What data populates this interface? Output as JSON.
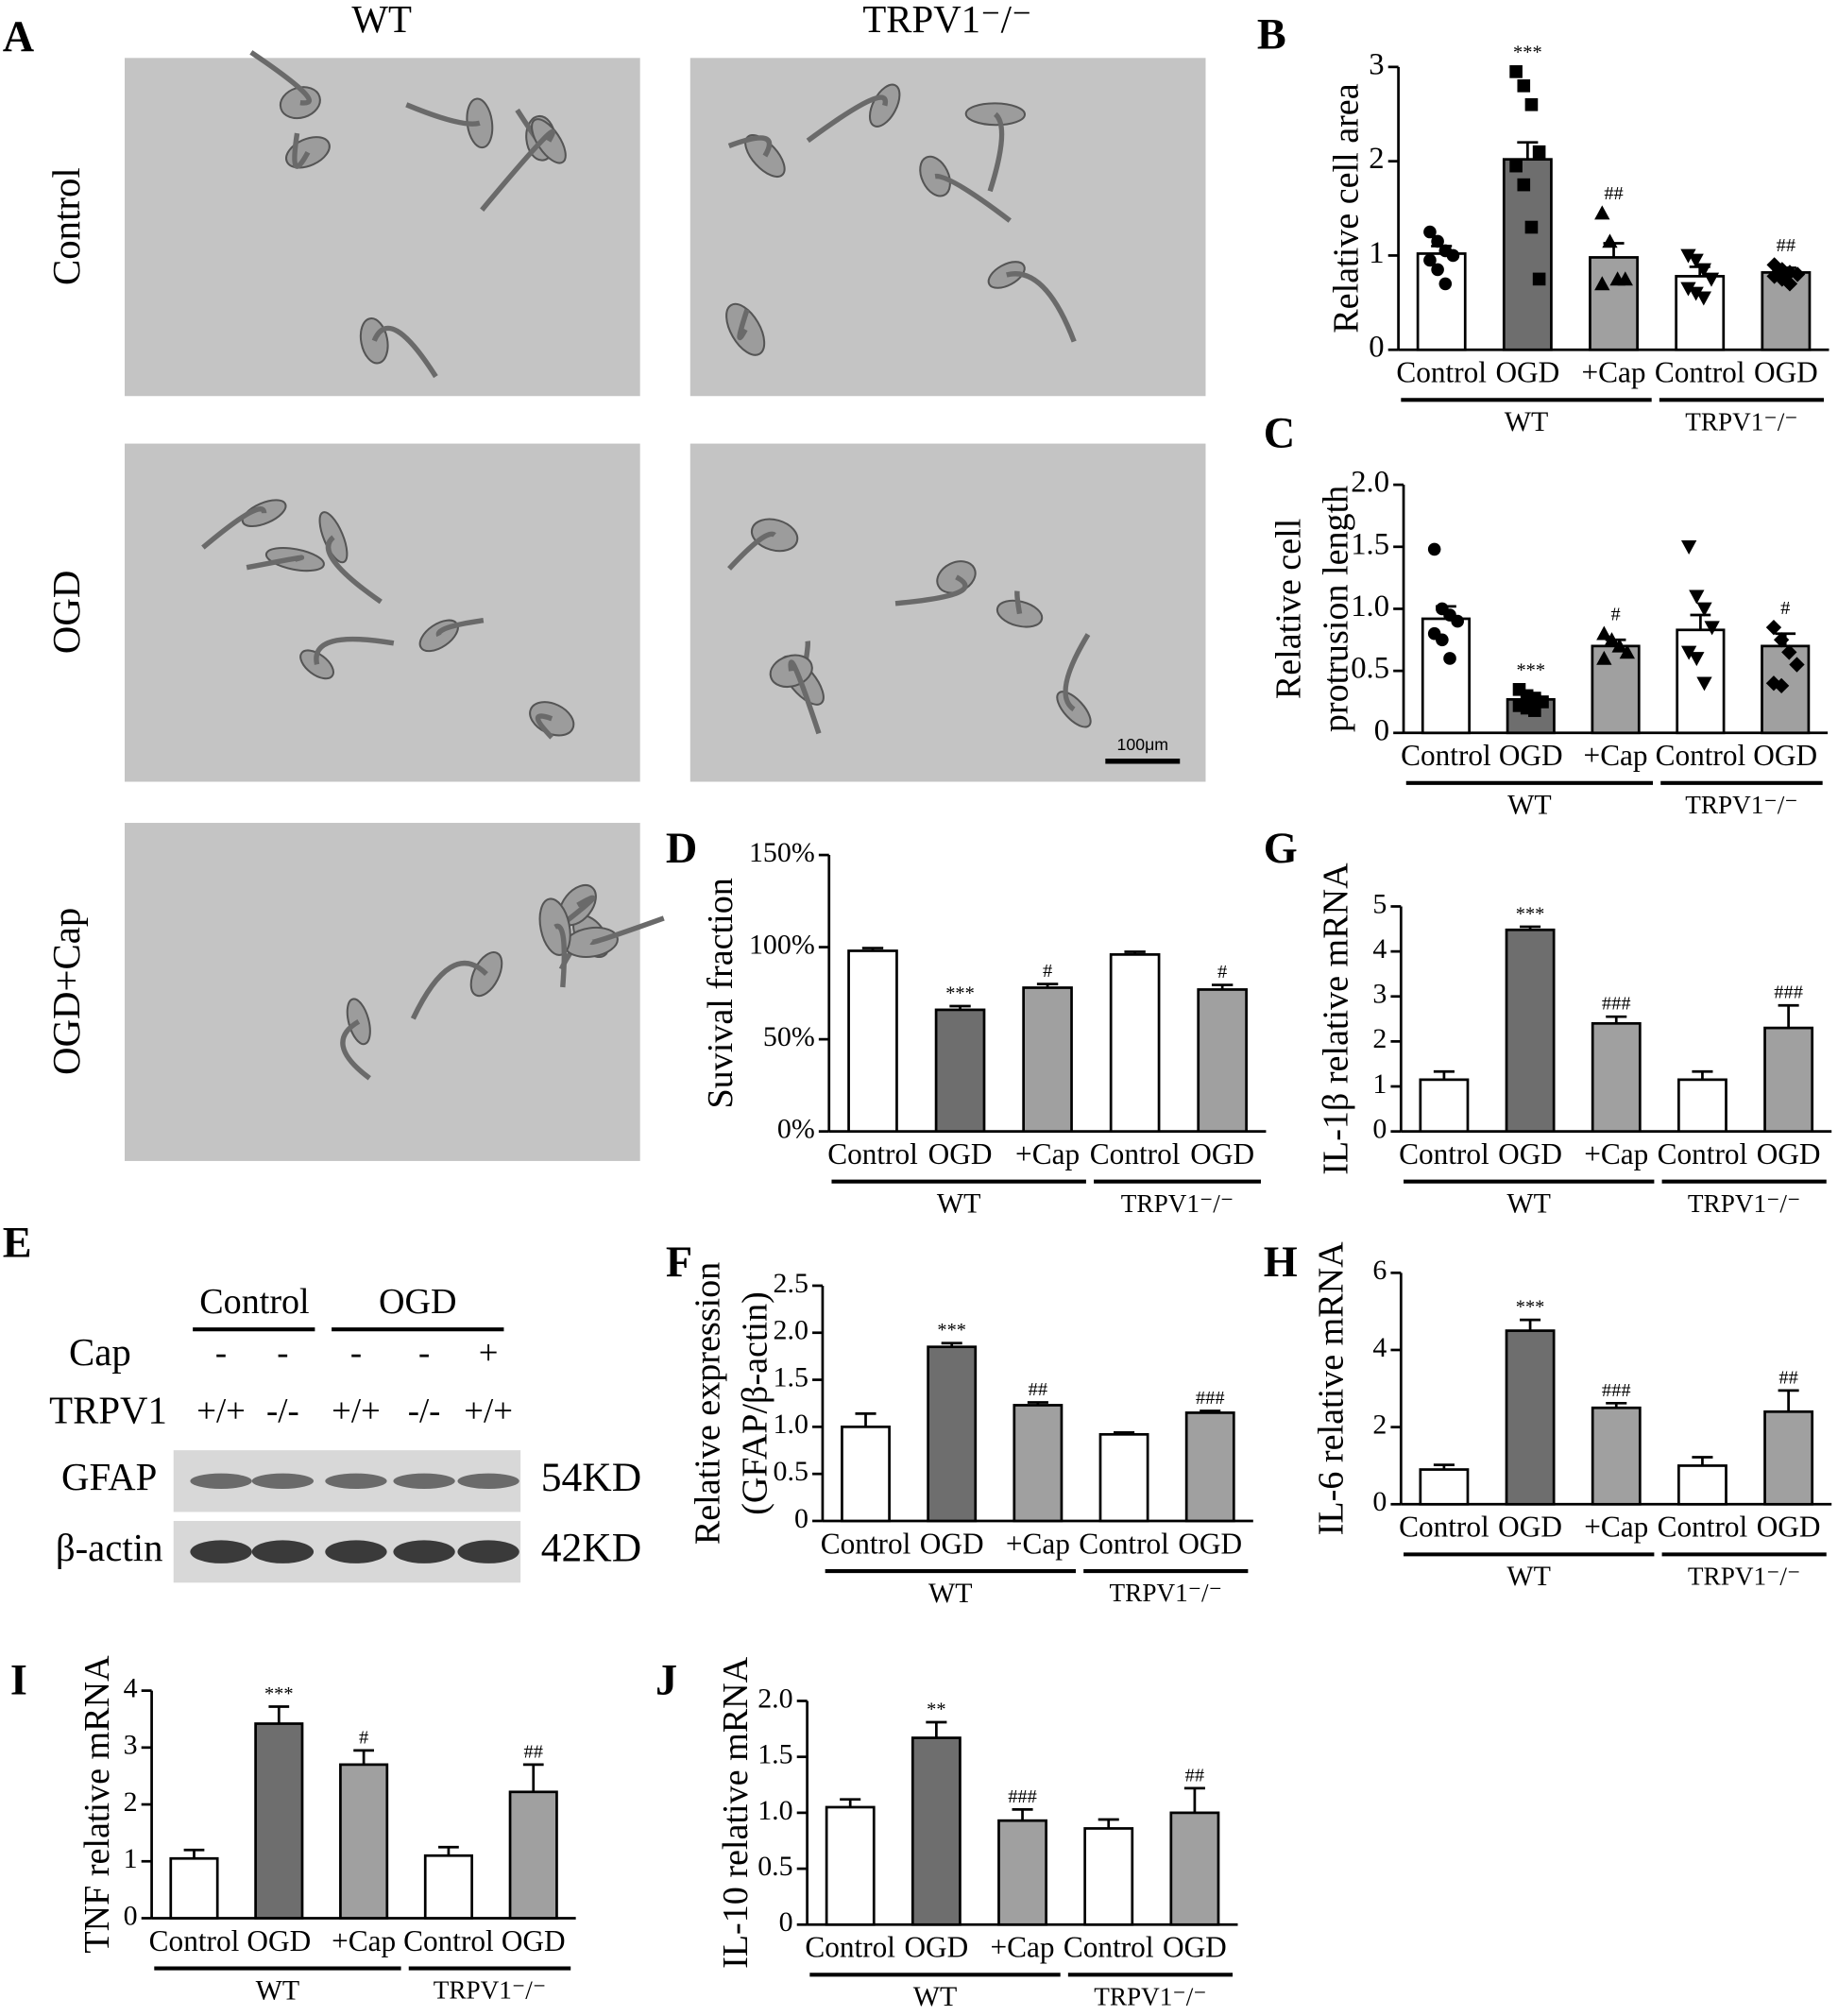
{
  "panel_a": {
    "letter": "A",
    "columns": [
      "WT",
      "TRPV1⁻/⁻"
    ],
    "rows": [
      "Control",
      "OGD",
      "OGD+Cap"
    ],
    "scale_bar": "100μm"
  },
  "panel_e": {
    "letter": "E",
    "groups": [
      "Control",
      "OGD"
    ],
    "rows": [
      {
        "label": "Cap",
        "cells": [
          "-",
          "-",
          "-",
          "-",
          "+"
        ]
      },
      {
        "label": "TRPV1",
        "cells": [
          "+/+",
          "-/-",
          "+/+",
          "-/-",
          "+/+"
        ]
      }
    ],
    "bands": [
      {
        "label": "GFAP",
        "size": "54KD"
      },
      {
        "label": "β-actin",
        "size": "42KD"
      }
    ]
  },
  "chart_data": [
    {
      "type": "bar",
      "letter": "B",
      "ylabel": "Relative cell area",
      "categories": [
        "Control",
        "OGD",
        "+Cap",
        "Control",
        "OGD"
      ],
      "groups": [
        "WT",
        "TRPV1⁻/⁻"
      ],
      "values": [
        1.02,
        2.02,
        0.98,
        0.78,
        0.82
      ],
      "errors": [
        0.08,
        0.18,
        0.15,
        0.1,
        0.05
      ],
      "annotations": [
        null,
        "***",
        "##",
        null,
        "##"
      ],
      "colors": [
        "#ffffff",
        "#6e6e6e",
        "#a0a0a0",
        "#ffffff",
        "#a0a0a0"
      ],
      "markers": [
        "circle",
        "square",
        "triangle",
        "triangle-down",
        "diamond"
      ],
      "points": [
        [
          1.25,
          1.15,
          1.05,
          1.0,
          0.95,
          0.85,
          0.7
        ],
        [
          2.95,
          2.8,
          2.6,
          2.1,
          1.95,
          1.75,
          1.3,
          0.75
        ],
        [
          1.45,
          1.15,
          0.75,
          0.75,
          0.7
        ],
        [
          1.0,
          0.95,
          0.85,
          0.75,
          0.65,
          0.6,
          0.55
        ],
        [
          0.9,
          0.85,
          0.82,
          0.8,
          0.78,
          0.75,
          0.7
        ]
      ],
      "ylim": [
        0,
        3
      ],
      "yticks": [
        0,
        1,
        2,
        3
      ]
    },
    {
      "type": "bar",
      "letter": "C",
      "ylabel": [
        "Relative cell",
        "protrusion length"
      ],
      "categories": [
        "Control",
        "OGD",
        "+Cap",
        "Control",
        "OGD"
      ],
      "groups": [
        "WT",
        "TRPV1⁻/⁻"
      ],
      "values": [
        0.92,
        0.27,
        0.7,
        0.83,
        0.7
      ],
      "errors": [
        0.1,
        0.03,
        0.05,
        0.12,
        0.1
      ],
      "annotations": [
        null,
        "***",
        "#",
        null,
        "#"
      ],
      "colors": [
        "#ffffff",
        "#6e6e6e",
        "#a0a0a0",
        "#ffffff",
        "#a0a0a0"
      ],
      "markers": [
        "circle",
        "square",
        "triangle",
        "triangle-down",
        "diamond"
      ],
      "points": [
        [
          1.48,
          1.0,
          0.95,
          0.9,
          0.8,
          0.75,
          0.6
        ],
        [
          0.35,
          0.3,
          0.28,
          0.25,
          0.22,
          0.2,
          0.18
        ],
        [
          0.8,
          0.75,
          0.7,
          0.65,
          0.6
        ],
        [
          1.5,
          1.1,
          1.0,
          0.85,
          0.65,
          0.6,
          0.4
        ],
        [
          0.85,
          0.75,
          0.65,
          0.55,
          0.4,
          0.38
        ]
      ],
      "ylim": [
        0,
        2
      ],
      "yticks": [
        0,
        0.5,
        {
          "value": 1,
          "label": "1.0"
        },
        1.5,
        {
          "value": 2,
          "label": "2.0"
        }
      ]
    },
    {
      "type": "bar",
      "letter": "D",
      "ylabel": "Suvival fraction",
      "categories": [
        "Control",
        "OGD",
        "+Cap",
        "Control",
        "OGD"
      ],
      "groups": [
        "WT",
        "TRPV1⁻/⁻"
      ],
      "values": [
        98,
        66,
        78,
        96,
        77
      ],
      "errors": [
        1.5,
        2,
        2,
        1.5,
        2.5
      ],
      "annotations": [
        null,
        "***",
        "#",
        null,
        "#"
      ],
      "colors": [
        "#ffffff",
        "#6e6e6e",
        "#a0a0a0",
        "#ffffff",
        "#a0a0a0"
      ],
      "ylim": [
        0,
        150
      ],
      "yticks": [
        {
          "value": 0,
          "label": "0%"
        },
        {
          "value": 50,
          "label": "50%"
        },
        {
          "value": 100,
          "label": "100%"
        },
        {
          "value": 150,
          "label": "150%"
        }
      ]
    },
    {
      "type": "bar",
      "letter": "F",
      "ylabel": [
        "Relative expression",
        "(GFAP/β-actin)"
      ],
      "categories": [
        "Control",
        "OGD",
        "+Cap",
        "Control",
        "OGD"
      ],
      "groups": [
        "WT",
        "TRPV1⁻/⁻"
      ],
      "values": [
        1.0,
        1.85,
        1.23,
        0.92,
        1.15
      ],
      "errors": [
        0.14,
        0.04,
        0.03,
        0.02,
        0.02
      ],
      "annotations": [
        null,
        "***",
        "##",
        null,
        "###"
      ],
      "colors": [
        "#ffffff",
        "#6e6e6e",
        "#a0a0a0",
        "#ffffff",
        "#a0a0a0"
      ],
      "ylim": [
        0,
        2.5
      ],
      "yticks": [
        0,
        0.5,
        {
          "value": 1,
          "label": "1.0"
        },
        1.5,
        {
          "value": 2,
          "label": "2.0"
        },
        2.5
      ]
    },
    {
      "type": "bar",
      "letter": "G",
      "ylabel": "IL-1β relative mRNA",
      "categories": [
        "Control",
        "OGD",
        "+Cap",
        "Control",
        "OGD"
      ],
      "groups": [
        "WT",
        "TRPV1⁻/⁻"
      ],
      "values": [
        1.15,
        4.48,
        2.4,
        1.15,
        2.3
      ],
      "errors": [
        0.18,
        0.07,
        0.15,
        0.18,
        0.5
      ],
      "annotations": [
        null,
        "***",
        "###",
        null,
        "###"
      ],
      "colors": [
        "#ffffff",
        "#6e6e6e",
        "#a0a0a0",
        "#ffffff",
        "#a0a0a0"
      ],
      "ylim": [
        0,
        5
      ],
      "yticks": [
        0,
        1,
        2,
        3,
        4,
        5
      ]
    },
    {
      "type": "bar",
      "letter": "H",
      "ylabel": "IL-6 relative mRNA",
      "categories": [
        "Control",
        "OGD",
        "+Cap",
        "Control",
        "OGD"
      ],
      "groups": [
        "WT",
        "TRPV1⁻/⁻"
      ],
      "values": [
        0.9,
        4.5,
        2.5,
        1.0,
        2.4
      ],
      "errors": [
        0.12,
        0.28,
        0.12,
        0.22,
        0.55
      ],
      "annotations": [
        null,
        "***",
        "###",
        null,
        "##"
      ],
      "colors": [
        "#ffffff",
        "#6e6e6e",
        "#a0a0a0",
        "#ffffff",
        "#a0a0a0"
      ],
      "ylim": [
        0,
        6
      ],
      "yticks": [
        0,
        2,
        4,
        6
      ]
    },
    {
      "type": "bar",
      "letter": "I",
      "ylabel": "TNF relative mRNA",
      "categories": [
        "Control",
        "OGD",
        "+Cap",
        "Control",
        "OGD"
      ],
      "groups": [
        "WT",
        "TRPV1⁻/⁻"
      ],
      "values": [
        1.05,
        3.42,
        2.7,
        1.1,
        2.22
      ],
      "errors": [
        0.15,
        0.3,
        0.25,
        0.15,
        0.48
      ],
      "annotations": [
        null,
        "***",
        "#",
        null,
        "##"
      ],
      "colors": [
        "#ffffff",
        "#6e6e6e",
        "#a0a0a0",
        "#ffffff",
        "#a0a0a0"
      ],
      "ylim": [
        0,
        4
      ],
      "yticks": [
        0,
        1,
        2,
        3,
        4
      ]
    },
    {
      "type": "bar",
      "letter": "J",
      "ylabel": "IL-10 relative mRNA",
      "categories": [
        "Control",
        "OGD",
        "+Cap",
        "Control",
        "OGD"
      ],
      "groups": [
        "WT",
        "TRPV1⁻/⁻"
      ],
      "values": [
        1.05,
        1.67,
        0.93,
        0.86,
        1.0
      ],
      "errors": [
        0.07,
        0.14,
        0.1,
        0.08,
        0.22
      ],
      "annotations": [
        null,
        "**",
        "###",
        null,
        "##"
      ],
      "colors": [
        "#ffffff",
        "#6e6e6e",
        "#a0a0a0",
        "#ffffff",
        "#a0a0a0"
      ],
      "ylim": [
        0,
        2
      ],
      "yticks": [
        0,
        0.5,
        {
          "value": 1,
          "label": "1.0"
        },
        1.5,
        {
          "value": 2,
          "label": "2.0"
        }
      ]
    }
  ]
}
